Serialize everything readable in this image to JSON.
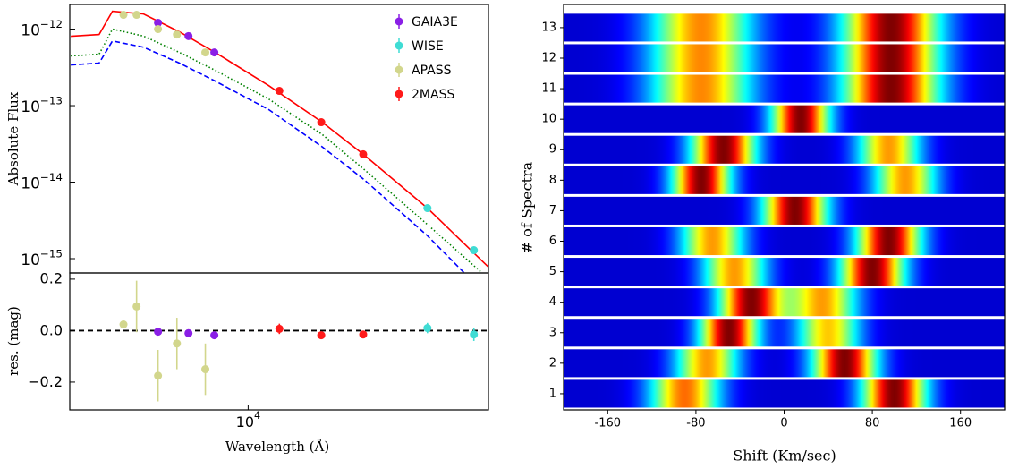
{
  "chart_data": [
    {
      "type": "sed",
      "ylabel": "Absolute Flux",
      "log_x": true,
      "log_y": true,
      "xlim": [
        2900,
        53000
      ],
      "ylim": [
        6.5e-16,
        2.1e-12
      ],
      "yticks": [
        {
          "value": 1e-12,
          "label": "10",
          "exponent": "−12"
        },
        {
          "value": 1e-13,
          "label": "10",
          "exponent": "−13"
        },
        {
          "value": 1e-14,
          "label": "10",
          "exponent": "−14"
        },
        {
          "value": 1e-15,
          "label": "10",
          "exponent": "−15"
        }
      ],
      "legend": "upper right",
      "series": [
        {
          "name": "GAIA3E",
          "color": "#8a1fe6",
          "x": [
            5350,
            6610,
            7910
          ],
          "values": [
            1.21e-12,
            8.1e-13,
            4.96e-13
          ]
        },
        {
          "name": "WISE",
          "color": "#3fdcd4",
          "x": [
            34700,
            47900
          ],
          "values": [
            4.58e-15,
            1.29e-15
          ]
        },
        {
          "name": "APASS",
          "color": "#d2d68c",
          "x": [
            4210,
            4610,
            5350,
            6100,
            7430
          ],
          "values": [
            1.54e-12,
            1.54e-12,
            1e-12,
            8.5e-13,
            4.96e-13
          ]
        },
        {
          "name": "2MASS",
          "color": "#ff1a1a",
          "x": [
            12420,
            16610,
            22220
          ],
          "values": [
            1.56e-13,
            6.08e-14,
            2.31e-14
          ]
        }
      ],
      "models": [
        {
          "color": "#ff0000",
          "style": "solid",
          "x": [
            2920,
            3556,
            3900,
            4840,
            6210,
            7950,
            11530,
            16710,
            22230,
            34680,
            52800
          ],
          "values": [
            8.06e-13,
            8.5e-13,
            1.71e-12,
            1.58e-12,
            9.2e-13,
            4.96e-13,
            1.83e-13,
            6.08e-14,
            2.31e-14,
            4.58e-15,
            7.9e-16
          ]
        },
        {
          "color": "#008000",
          "style": "dotted",
          "x": [
            2920,
            3556,
            3900,
            4840,
            6210,
            7950,
            11530,
            16710,
            22230,
            34680,
            50900
          ],
          "values": [
            4.46e-13,
            4.7e-13,
            1e-12,
            8.1e-13,
            4.96e-13,
            2.9e-13,
            1.22e-13,
            4.2e-14,
            1.5e-14,
            2.8e-15,
            6.4e-16
          ]
        },
        {
          "color": "#0000ff",
          "style": "dashed",
          "x": [
            2920,
            3556,
            3900,
            4840,
            6210,
            7950,
            11530,
            16710,
            22230,
            34680,
            44980
          ],
          "values": [
            3.4e-13,
            3.6e-13,
            7e-13,
            5.8e-13,
            3.6e-13,
            2.1e-13,
            8.9e-14,
            2.9e-14,
            1.1e-14,
            2e-15,
            6.4e-16
          ]
        }
      ]
    },
    {
      "type": "residual",
      "xlabel": "Wavelength (Å)",
      "ylabel": "res. (mag)",
      "log_x": true,
      "xlim": [
        2900,
        53000
      ],
      "xticks": [
        {
          "value": 10000,
          "label": "10",
          "exponent": "4"
        }
      ],
      "ylim": [
        -0.308,
        0.224
      ],
      "yticks": [
        0.2,
        {
          "value": 0,
          "label": "0.0"
        },
        {
          "value": -0.2,
          "label": "−0.2"
        }
      ],
      "hline": 0,
      "series": [
        {
          "color": "#8a1fe6",
          "x": [
            5350,
            6610,
            7910
          ],
          "values": [
            -0.004,
            -0.01,
            -0.018
          ],
          "errors": [
            0.012,
            0.012,
            0.012
          ]
        },
        {
          "color": "#3fdcd4",
          "x": [
            34700,
            47900
          ],
          "values": [
            0.01,
            -0.015
          ],
          "errors": [
            0.02,
            0.025
          ]
        },
        {
          "color": "#d2d68c",
          "x": [
            4210,
            4610,
            5350,
            6100,
            7430
          ],
          "values": [
            0.024,
            0.094,
            -0.175,
            -0.05,
            -0.15
          ],
          "errors": [
            0.012,
            0.1,
            0.1,
            0.1,
            0.1
          ]
        },
        {
          "color": "#ff1a1a",
          "x": [
            12420,
            16610,
            22220
          ],
          "values": [
            0.007,
            -0.018,
            -0.015
          ],
          "errors": [
            0.02,
            0.012,
            0.012
          ]
        }
      ]
    },
    {
      "type": "heatmap",
      "xlabel": "Shift (Km/sec)",
      "ylabel": "# of Spectra",
      "xlim": [
        -200,
        200
      ],
      "xticks": [
        -160,
        -80,
        0,
        80,
        160
      ],
      "ylim": [
        0.47,
        13.76
      ],
      "yticks": [
        1,
        2,
        3,
        4,
        5,
        6,
        7,
        8,
        9,
        10,
        11,
        12,
        13
      ],
      "strips": [
        {
          "spectrum": 1,
          "components": [
            {
              "center": -90,
              "sigma": 22,
              "amp": 0.75
            },
            {
              "center": 100,
              "sigma": 20,
              "amp": 1
            }
          ]
        },
        {
          "spectrum": 2,
          "components": [
            {
              "center": -70,
              "sigma": 20,
              "amp": 0.7
            },
            {
              "center": 55,
              "sigma": 20,
              "amp": 1
            }
          ]
        },
        {
          "spectrum": 3,
          "components": [
            {
              "center": -50,
              "sigma": 18,
              "amp": 1
            },
            {
              "center": 40,
              "sigma": 20,
              "amp": 0.65
            }
          ]
        },
        {
          "spectrum": 4,
          "components": [
            {
              "center": -30,
              "sigma": 20,
              "amp": 1
            },
            {
              "center": 35,
              "sigma": 22,
              "amp": 0.7
            }
          ]
        },
        {
          "spectrum": 5,
          "components": [
            {
              "center": -45,
              "sigma": 20,
              "amp": 0.7
            },
            {
              "center": 80,
              "sigma": 20,
              "amp": 1
            }
          ]
        },
        {
          "spectrum": 6,
          "components": [
            {
              "center": -65,
              "sigma": 20,
              "amp": 0.7
            },
            {
              "center": 95,
              "sigma": 20,
              "amp": 1
            }
          ]
        },
        {
          "spectrum": 7,
          "components": [
            {
              "center": 10,
              "sigma": 20,
              "amp": 1
            }
          ]
        },
        {
          "spectrum": 8,
          "components": [
            {
              "center": -75,
              "sigma": 18,
              "amp": 1
            },
            {
              "center": 110,
              "sigma": 20,
              "amp": 0.7
            }
          ]
        },
        {
          "spectrum": 9,
          "components": [
            {
              "center": -55,
              "sigma": 20,
              "amp": 1
            },
            {
              "center": 95,
              "sigma": 20,
              "amp": 0.7
            }
          ]
        },
        {
          "spectrum": 10,
          "components": [
            {
              "center": 15,
              "sigma": 18,
              "amp": 1
            }
          ]
        },
        {
          "spectrum": 11,
          "components": [
            {
              "center": -75,
              "sigma": 32,
              "amp": 0.72
            },
            {
              "center": 97,
              "sigma": 30,
              "amp": 1
            }
          ]
        },
        {
          "spectrum": 12,
          "components": [
            {
              "center": -75,
              "sigma": 32,
              "amp": 0.72
            },
            {
              "center": 97,
              "sigma": 30,
              "amp": 1
            }
          ]
        },
        {
          "spectrum": 13,
          "components": [
            {
              "center": -75,
              "sigma": 32,
              "amp": 0.72
            },
            {
              "center": 97,
              "sigma": 30,
              "amp": 1
            }
          ]
        }
      ]
    }
  ]
}
